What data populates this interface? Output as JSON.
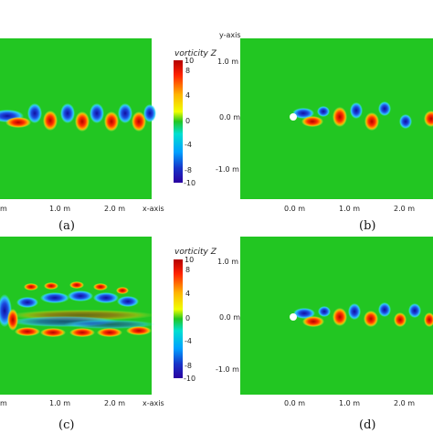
{
  "panels": [
    {
      "id": "a",
      "caption": "(a)",
      "x_ticks": [
        "m",
        "1.0 m",
        "2.0 m"
      ],
      "x_axis_label": "x-axis",
      "y_ticks": [],
      "y_axis_label": ""
    },
    {
      "id": "b",
      "caption": "(b)",
      "x_ticks": [
        "0.0 m",
        "1.0 m",
        "2.0 m"
      ],
      "x_axis_label": "",
      "y_ticks": [
        "1.0 m",
        "0.0 m",
        "-1.0 m"
      ],
      "y_axis_label": "y-axis"
    },
    {
      "id": "c",
      "caption": "(c)",
      "x_ticks": [
        "m",
        "1.0 m",
        "2.0 m"
      ],
      "x_axis_label": "x-axis",
      "y_ticks": [],
      "y_axis_label": ""
    },
    {
      "id": "d",
      "caption": "(d)",
      "x_ticks": [
        "0.0 m",
        "1.0 m",
        "2.0 m"
      ],
      "x_axis_label": "",
      "y_ticks": [
        "1.0 m",
        "0.0 m",
        "-1.0 m"
      ],
      "y_axis_label": ""
    }
  ],
  "colorbar": {
    "title": "vorticity Z",
    "ticks": [
      "10",
      "8",
      "4",
      "0",
      "-4",
      "-8",
      "-10"
    ],
    "range": [
      -10,
      10
    ]
  },
  "colors": {
    "background_field": "#22c622",
    "positive": "#e03a18",
    "negative": "#1734c8"
  }
}
